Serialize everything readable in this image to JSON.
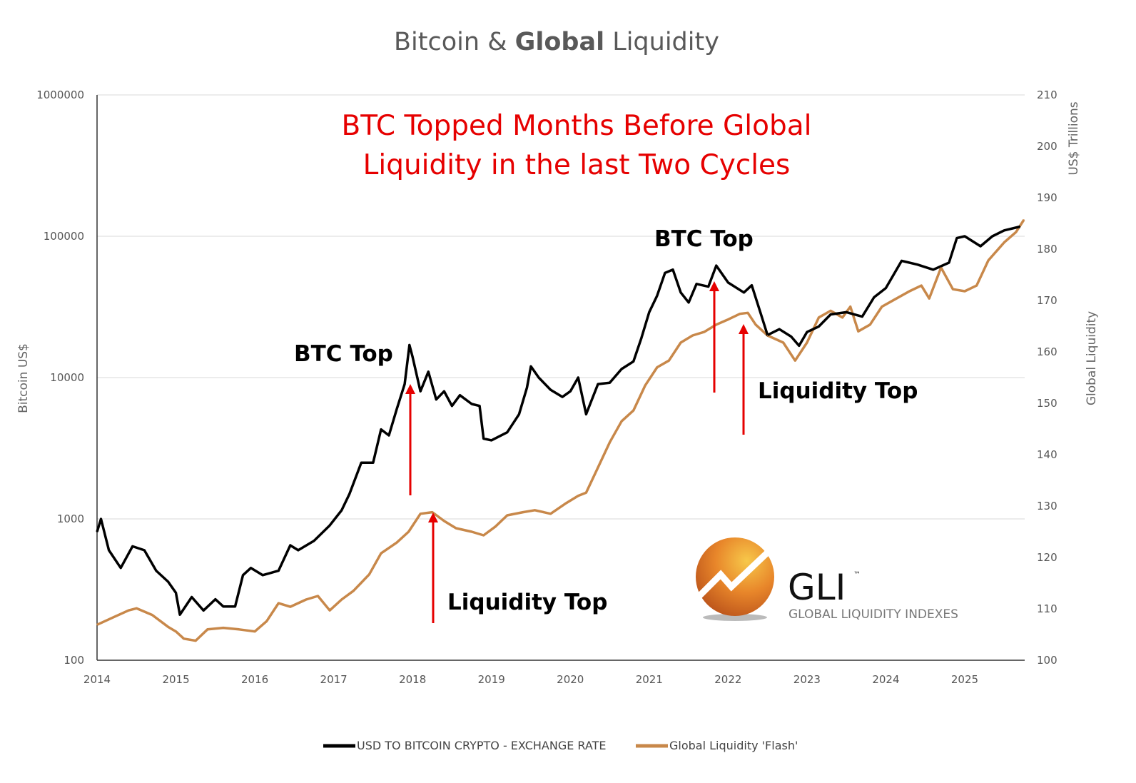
{
  "chart_data": {
    "type": "line",
    "title_part1": "Bitcoin & ",
    "title_bold": "Global",
    "title_part2": " Liquidity",
    "headline": [
      "BTC Topped Months Before Global",
      "Liquidity in the last Two Cycles"
    ],
    "xlabel": "",
    "ylabel_left": "Bitcoin US$",
    "ylabel_right": "Global Liquidity",
    "ylabel_right_units": "US$ Trillions",
    "xlim": [
      2014,
      2025.76
    ],
    "ylim_left": [
      100,
      1000000
    ],
    "ylim_right": [
      100,
      210
    ],
    "y_left_scale": "log",
    "grid": true,
    "x_ticks": [
      "2014",
      "2015",
      "2016",
      "2017",
      "2018",
      "2019",
      "2020",
      "2021",
      "2022",
      "2023",
      "2024",
      "2025"
    ],
    "y_left_ticks": [
      "1000000",
      "100000",
      "10000",
      "1000",
      "100"
    ],
    "y_right_ticks": [
      "210",
      "200",
      "190",
      "180",
      "170",
      "160",
      "150",
      "140",
      "130",
      "120",
      "110",
      "100"
    ],
    "legend_position": "bottom-center",
    "annotations": {
      "btc_top_1": "BTC Top",
      "btc_top_2": "BTC Top",
      "liq_top_1": "Liquidity Top",
      "liq_top_2": "Liquidity Top"
    },
    "logo": {
      "name": "GLI",
      "tm": "™",
      "subtitle": "GLOBAL LIQUIDITY INDEXES"
    },
    "series": [
      {
        "name": "USD TO BITCOIN CRYPTO - EXCHANGE RATE",
        "axis": "left",
        "color": "#000000",
        "x": [
          2014.0,
          2014.05,
          2014.15,
          2014.3,
          2014.45,
          2014.6,
          2014.75,
          2014.9,
          2015.0,
          2015.05,
          2015.2,
          2015.35,
          2015.5,
          2015.6,
          2015.75,
          2015.85,
          2015.95,
          2016.1,
          2016.3,
          2016.45,
          2016.55,
          2016.75,
          2016.95,
          2017.1,
          2017.2,
          2017.35,
          2017.5,
          2017.6,
          2017.7,
          2017.8,
          2017.9,
          2017.96,
          2018.0,
          2018.1,
          2018.2,
          2018.3,
          2018.4,
          2018.5,
          2018.6,
          2018.75,
          2018.85,
          2018.9,
          2019.0,
          2019.2,
          2019.35,
          2019.45,
          2019.5,
          2019.6,
          2019.75,
          2019.9,
          2020.0,
          2020.1,
          2020.2,
          2020.35,
          2020.5,
          2020.65,
          2020.8,
          2020.9,
          2021.0,
          2021.1,
          2021.2,
          2021.3,
          2021.4,
          2021.5,
          2021.6,
          2021.75,
          2021.85,
          2022.0,
          2022.2,
          2022.3,
          2022.4,
          2022.5,
          2022.65,
          2022.8,
          2022.9,
          2023.0,
          2023.15,
          2023.3,
          2023.5,
          2023.7,
          2023.85,
          2024.0,
          2024.2,
          2024.4,
          2024.6,
          2024.8,
          2024.9,
          2025.0,
          2025.2,
          2025.35,
          2025.5,
          2025.7
        ],
        "values": [
          810,
          1000,
          600,
          450,
          640,
          600,
          430,
          360,
          300,
          210,
          280,
          225,
          270,
          240,
          240,
          400,
          450,
          400,
          430,
          650,
          600,
          700,
          900,
          1150,
          1500,
          2500,
          2500,
          4300,
          3900,
          6000,
          9000,
          17000,
          14000,
          8000,
          11000,
          7000,
          8000,
          6300,
          7500,
          6500,
          6300,
          3700,
          3600,
          4100,
          5500,
          8500,
          12000,
          10000,
          8200,
          7300,
          8000,
          10000,
          5500,
          9000,
          9200,
          11500,
          13000,
          19000,
          29000,
          38000,
          55000,
          58000,
          40000,
          34000,
          46000,
          44000,
          62000,
          47000,
          40000,
          45000,
          30000,
          20000,
          22000,
          19500,
          16800,
          21000,
          23000,
          28000,
          29000,
          27000,
          37000,
          43000,
          67000,
          63000,
          58000,
          65000,
          97000,
          100000,
          85000,
          100000,
          110000,
          117000
        ]
      },
      {
        "name": "Global Liquidity 'Flash'",
        "axis": "right",
        "color": "#c8884a",
        "x": [
          2014.0,
          2014.2,
          2014.4,
          2014.5,
          2014.7,
          2014.9,
          2015.0,
          2015.1,
          2015.25,
          2015.4,
          2015.6,
          2015.8,
          2016.0,
          2016.15,
          2016.3,
          2016.45,
          2016.65,
          2016.8,
          2016.95,
          2017.1,
          2017.25,
          2017.45,
          2017.6,
          2017.8,
          2017.95,
          2018.1,
          2018.25,
          2018.4,
          2018.55,
          2018.75,
          2018.9,
          2019.05,
          2019.2,
          2019.4,
          2019.55,
          2019.75,
          2019.95,
          2020.1,
          2020.2,
          2020.35,
          2020.5,
          2020.65,
          2020.8,
          2020.95,
          2021.1,
          2021.25,
          2021.4,
          2021.55,
          2021.7,
          2021.85,
          2022.0,
          2022.15,
          2022.25,
          2022.35,
          2022.5,
          2022.7,
          2022.85,
          2023.0,
          2023.15,
          2023.3,
          2023.45,
          2023.55,
          2023.65,
          2023.8,
          2023.95,
          2024.1,
          2024.3,
          2024.45,
          2024.55,
          2024.7,
          2024.85,
          2025.0,
          2025.15,
          2025.3,
          2025.5,
          2025.65,
          2025.75
        ],
        "values": [
          106.9,
          108.3,
          109.7,
          110.1,
          108.8,
          106.5,
          105.6,
          104.2,
          103.8,
          106.0,
          106.3,
          106.0,
          105.6,
          107.6,
          111.1,
          110.4,
          111.8,
          112.5,
          109.7,
          111.8,
          113.5,
          116.7,
          120.8,
          122.9,
          125.0,
          128.5,
          128.8,
          127.1,
          125.7,
          125.0,
          124.3,
          126.0,
          128.2,
          128.8,
          129.2,
          128.5,
          130.6,
          132.0,
          132.6,
          137.5,
          142.4,
          146.5,
          148.6,
          153.5,
          157.0,
          158.3,
          161.8,
          163.2,
          163.9,
          165.3,
          166.3,
          167.4,
          167.6,
          165.3,
          163.2,
          161.8,
          158.3,
          161.8,
          166.7,
          168.0,
          166.7,
          168.8,
          164.0,
          165.3,
          168.8,
          170.1,
          171.8,
          172.9,
          170.4,
          176.4,
          172.2,
          171.8,
          172.9,
          177.8,
          181.3,
          183.3,
          185.7
        ]
      }
    ]
  }
}
